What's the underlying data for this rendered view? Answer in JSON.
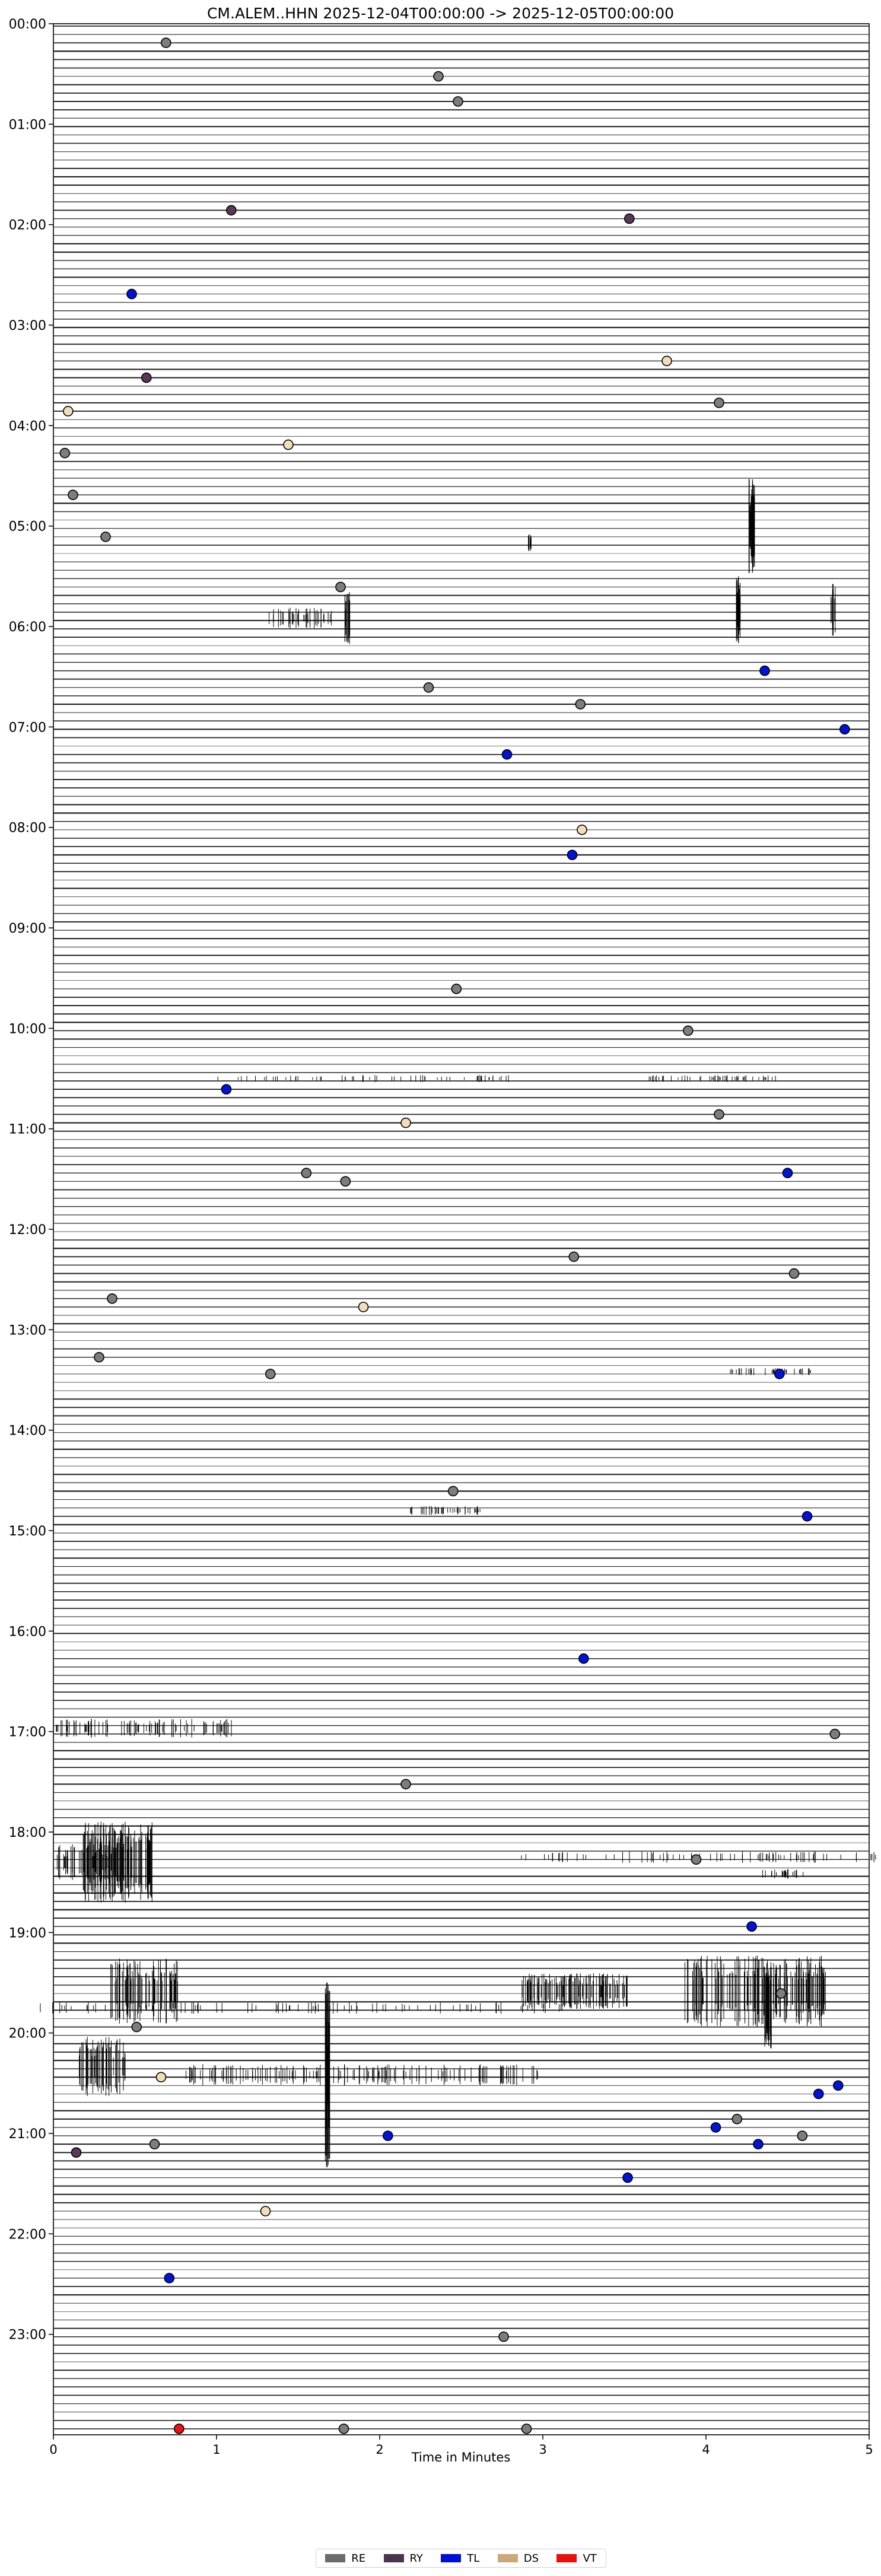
{
  "title": "CM.ALEM..HHN  2025-12-04T00:00:00 -> 2025-12-05T00:00:00",
  "chart_data": {
    "type": "scatter",
    "title": "CM.ALEM..HHN  2025-12-04T00:00:00 -> 2025-12-05T00:00:00",
    "xlabel": "Time in Minutes",
    "ylabel": "",
    "xlim": [
      0,
      5
    ],
    "ylim_hours": [
      0,
      24
    ],
    "x_ticks": [
      "0",
      "1",
      "2",
      "3",
      "4",
      "5"
    ],
    "y_ticks": [
      "00:00",
      "01:00",
      "02:00",
      "03:00",
      "04:00",
      "05:00",
      "06:00",
      "07:00",
      "08:00",
      "09:00",
      "10:00",
      "11:00",
      "12:00",
      "13:00",
      "14:00",
      "15:00",
      "16:00",
      "17:00",
      "18:00",
      "19:00",
      "20:00",
      "21:00",
      "22:00",
      "23:00"
    ],
    "legend": {
      "placement": "bottom-center",
      "entries": [
        {
          "label": "RE",
          "color": "#6b6b6b"
        },
        {
          "label": "RY",
          "color": "#4a3550"
        },
        {
          "label": "TL",
          "color": "#0010d8"
        },
        {
          "label": "DS",
          "color": "#c9a97a"
        },
        {
          "label": "VT",
          "color": "#e8110c"
        }
      ]
    },
    "colors": {
      "RE": "#7d7d7d",
      "RY": "#5a3858",
      "TL": "#0013d8",
      "DS": "#f1ddb8",
      "VT": "#ee1111"
    },
    "series": [
      {
        "name": "RE",
        "points": [
          {
            "x": 0.69,
            "y": "00:10"
          },
          {
            "x": 2.36,
            "y": "00:30"
          },
          {
            "x": 2.48,
            "y": "00:45"
          },
          {
            "x": 4.08,
            "y": "03:45"
          },
          {
            "x": 0.07,
            "y": "04:15"
          },
          {
            "x": 0.12,
            "y": "04:40"
          },
          {
            "x": 0.32,
            "y": "05:05"
          },
          {
            "x": 1.76,
            "y": "05:35"
          },
          {
            "x": 2.3,
            "y": "06:35"
          },
          {
            "x": 3.23,
            "y": "06:45"
          },
          {
            "x": 2.47,
            "y": "09:35"
          },
          {
            "x": 3.89,
            "y": "10:00"
          },
          {
            "x": 4.08,
            "y": "10:50"
          },
          {
            "x": 1.55,
            "y": "11:25"
          },
          {
            "x": 1.79,
            "y": "11:30"
          },
          {
            "x": 3.19,
            "y": "12:15"
          },
          {
            "x": 4.54,
            "y": "12:25"
          },
          {
            "x": 0.36,
            "y": "12:40"
          },
          {
            "x": 0.28,
            "y": "13:15"
          },
          {
            "x": 1.33,
            "y": "13:25"
          },
          {
            "x": 2.45,
            "y": "14:35"
          },
          {
            "x": 4.79,
            "y": "17:00"
          },
          {
            "x": 2.16,
            "y": "17:30"
          },
          {
            "x": 3.94,
            "y": "18:15"
          },
          {
            "x": 4.46,
            "y": "19:35"
          },
          {
            "x": 0.51,
            "y": "19:55"
          },
          {
            "x": 4.19,
            "y": "20:50"
          },
          {
            "x": 4.59,
            "y": "21:00"
          },
          {
            "x": 0.62,
            "y": "21:05"
          },
          {
            "x": 2.76,
            "y": "23:00"
          },
          {
            "x": 1.78,
            "y": "23:55"
          },
          {
            "x": 2.9,
            "y": "23:55"
          }
        ]
      },
      {
        "name": "RY",
        "points": [
          {
            "x": 1.09,
            "y": "01:50"
          },
          {
            "x": 3.53,
            "y": "01:55"
          },
          {
            "x": 0.57,
            "y": "03:30"
          },
          {
            "x": 0.14,
            "y": "21:10"
          }
        ]
      },
      {
        "name": "TL",
        "points": [
          {
            "x": 0.48,
            "y": "02:40"
          },
          {
            "x": 4.36,
            "y": "06:25"
          },
          {
            "x": 4.85,
            "y": "07:00"
          },
          {
            "x": 2.78,
            "y": "07:15"
          },
          {
            "x": 3.18,
            "y": "08:15"
          },
          {
            "x": 1.06,
            "y": "10:35"
          },
          {
            "x": 4.5,
            "y": "11:25"
          },
          {
            "x": 4.45,
            "y": "13:25"
          },
          {
            "x": 4.62,
            "y": "14:50"
          },
          {
            "x": 3.25,
            "y": "16:15"
          },
          {
            "x": 4.28,
            "y": "18:55"
          },
          {
            "x": 4.81,
            "y": "20:30"
          },
          {
            "x": 4.69,
            "y": "20:35"
          },
          {
            "x": 4.06,
            "y": "20:55"
          },
          {
            "x": 2.05,
            "y": "21:00"
          },
          {
            "x": 4.32,
            "y": "21:05"
          },
          {
            "x": 3.52,
            "y": "21:25"
          },
          {
            "x": 0.71,
            "y": "22:25"
          }
        ]
      },
      {
        "name": "DS",
        "points": [
          {
            "x": 3.76,
            "y": "03:20"
          },
          {
            "x": 0.09,
            "y": "03:50"
          },
          {
            "x": 1.44,
            "y": "04:10"
          },
          {
            "x": 3.24,
            "y": "08:00"
          },
          {
            "x": 2.16,
            "y": "10:55"
          },
          {
            "x": 1.9,
            "y": "12:45"
          },
          {
            "x": 0.66,
            "y": "20:25"
          },
          {
            "x": 1.3,
            "y": "21:45"
          }
        ]
      },
      {
        "name": "VT",
        "points": [
          {
            "x": 0.77,
            "y": "23:55"
          }
        ]
      }
    ],
    "traces_per_hour": 12,
    "trace_line_color": "#000000"
  }
}
